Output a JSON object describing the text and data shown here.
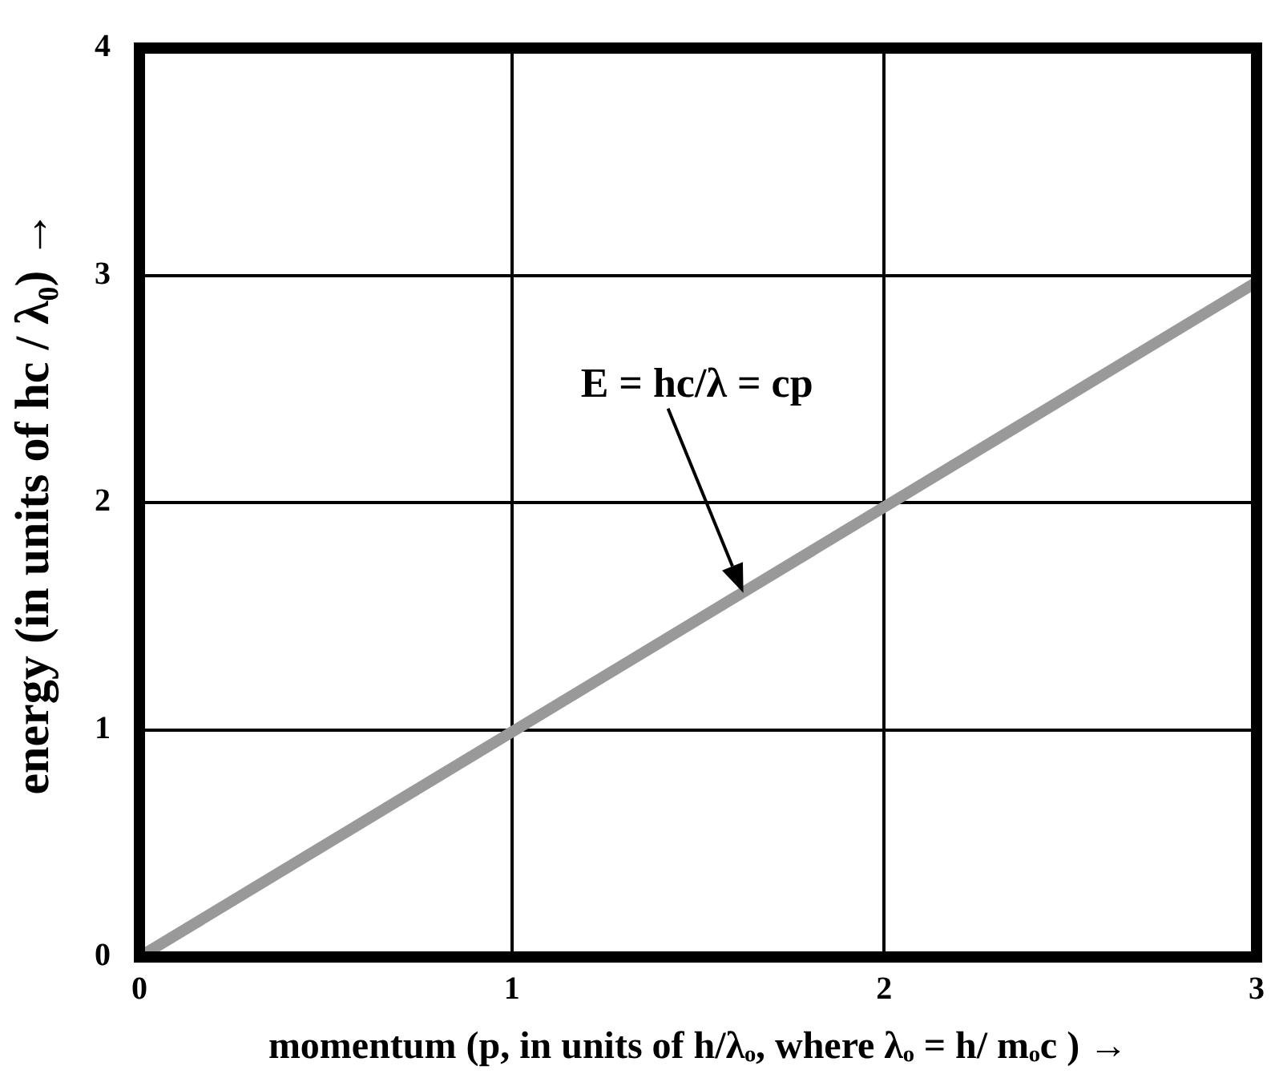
{
  "chart_data": {
    "type": "line",
    "xlabel": "momentum (p, in units of h/λₒ, where λₒ = h/ mₒc ) →",
    "ylabel": "energy (in units of hc / λ₀) →",
    "x": [
      0,
      3
    ],
    "series": [
      {
        "color": "#999999",
        "values": [
          0,
          2.97
        ]
      }
    ],
    "xlim": [
      0,
      3
    ],
    "ylim": [
      0,
      4
    ],
    "xticks": [
      0,
      1,
      2,
      3
    ],
    "yticks": [
      0,
      1,
      2,
      3,
      4
    ],
    "grid": true,
    "legend": false,
    "marker": "none",
    "line_style": "solid",
    "annotations": [
      "E = hc/λ = cp"
    ]
  }
}
